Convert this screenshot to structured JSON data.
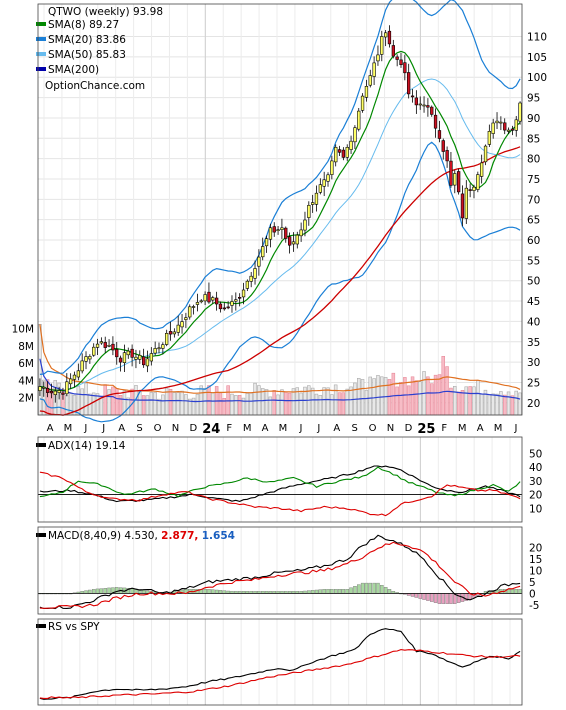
{
  "chart_data": [
    {
      "type": "candlestick",
      "ticker": "QTWO",
      "period": "(weekly)",
      "last": "93.98",
      "legend": [
        {
          "label": "SMA(8)",
          "value": "89.27",
          "color": "#008800"
        },
        {
          "label": "SMA(20)",
          "value": "83.86",
          "color": "#1a7fd6"
        },
        {
          "label": "SMA(50)",
          "value": "85.83",
          "color": "#66bbee"
        },
        {
          "label": "SMA(200)",
          "value": "",
          "color": "#0000aa"
        }
      ],
      "watermark": "OptionChance.com",
      "ylim": [
        17,
        118
      ],
      "yticks": [
        20,
        25,
        30,
        35,
        40,
        45,
        50,
        55,
        60,
        65,
        70,
        75,
        80,
        85,
        90,
        95,
        100,
        105,
        110
      ],
      "close_anchors": [
        [
          0,
          24
        ],
        [
          3,
          23
        ],
        [
          6,
          23
        ],
        [
          9,
          27
        ],
        [
          12,
          31
        ],
        [
          15,
          35
        ],
        [
          18,
          34
        ],
        [
          21,
          31
        ],
        [
          24,
          32
        ],
        [
          27,
          30
        ],
        [
          30,
          33
        ],
        [
          33,
          36
        ],
        [
          36,
          39
        ],
        [
          39,
          43
        ],
        [
          42,
          46
        ],
        [
          45,
          45
        ],
        [
          48,
          43
        ],
        [
          51,
          45
        ],
        [
          54,
          50
        ],
        [
          57,
          56
        ],
        [
          60,
          62
        ],
        [
          63,
          63
        ],
        [
          65,
          58
        ],
        [
          68,
          63
        ],
        [
          70,
          68
        ],
        [
          72,
          72
        ],
        [
          75,
          75
        ],
        [
          77,
          82
        ],
        [
          79,
          80
        ],
        [
          82,
          88
        ],
        [
          84,
          96
        ],
        [
          86,
          100
        ],
        [
          88,
          106
        ],
        [
          90,
          112
        ],
        [
          92,
          105
        ],
        [
          94,
          104
        ],
        [
          96,
          96
        ],
        [
          98,
          93
        ],
        [
          100,
          94
        ],
        [
          102,
          90
        ],
        [
          104,
          86
        ],
        [
          106,
          79
        ],
        [
          107,
          73
        ],
        [
          108,
          76
        ],
        [
          110,
          66
        ],
        [
          111,
          72
        ],
        [
          113,
          74
        ],
        [
          115,
          80
        ],
        [
          117,
          86
        ],
        [
          119,
          90
        ],
        [
          121,
          88
        ],
        [
          123,
          87
        ],
        [
          125,
          94
        ]
      ],
      "volume": {
        "ylim": [
          0,
          11000000
        ],
        "yticks": [
          "2M",
          "4M",
          "6M",
          "8M",
          "10M"
        ],
        "ytick_values": [
          2000000,
          4000000,
          6000000,
          8000000,
          10000000
        ],
        "avg_color": "#e07020"
      },
      "x_axis": {
        "labels": [
          "A",
          "M",
          "J",
          "J",
          "A",
          "S",
          "O",
          "N",
          "D",
          "24",
          "F",
          "M",
          "A",
          "M",
          "J",
          "J",
          "A",
          "S",
          "O",
          "N",
          "D",
          "25",
          "F",
          "M",
          "A",
          "M",
          "J"
        ],
        "bold_labels": [
          "24",
          "25"
        ]
      }
    },
    {
      "type": "line",
      "title": "ADX(14)",
      "value": "19.14",
      "ylim": [
        0,
        62
      ],
      "yticks": [
        10,
        20,
        30,
        40,
        50
      ],
      "series": [
        {
          "key": "adx",
          "color": "#000000",
          "anchors": [
            [
              0,
              22
            ],
            [
              8,
              23
            ],
            [
              14,
              20
            ],
            [
              20,
              15
            ],
            [
              28,
              16
            ],
            [
              34,
              18
            ],
            [
              40,
              20
            ],
            [
              46,
              17
            ],
            [
              52,
              15
            ],
            [
              58,
              20
            ],
            [
              64,
              25
            ],
            [
              70,
              29
            ],
            [
              76,
              32
            ],
            [
              82,
              36
            ],
            [
              86,
              40
            ],
            [
              90,
              41
            ],
            [
              94,
              38
            ],
            [
              98,
              32
            ],
            [
              102,
              26
            ],
            [
              106,
              23
            ],
            [
              110,
              22
            ],
            [
              116,
              26
            ],
            [
              120,
              23
            ],
            [
              125,
              19
            ]
          ]
        },
        {
          "key": "di_plus",
          "color": "#008800",
          "anchors": [
            [
              0,
              18
            ],
            [
              6,
              22
            ],
            [
              10,
              30
            ],
            [
              16,
              27
            ],
            [
              22,
              20
            ],
            [
              30,
              24
            ],
            [
              36,
              19
            ],
            [
              42,
              25
            ],
            [
              48,
              28
            ],
            [
              54,
              32
            ],
            [
              60,
              29
            ],
            [
              66,
              32
            ],
            [
              72,
              26
            ],
            [
              78,
              30
            ],
            [
              84,
              33
            ],
            [
              88,
              40
            ],
            [
              92,
              35
            ],
            [
              96,
              29
            ],
            [
              100,
              25
            ],
            [
              104,
              21
            ],
            [
              108,
              19
            ],
            [
              114,
              24
            ],
            [
              118,
              27
            ],
            [
              122,
              22
            ],
            [
              125,
              29
            ]
          ]
        },
        {
          "key": "di_minus",
          "color": "#dd0000",
          "anchors": [
            [
              0,
              36
            ],
            [
              6,
              32
            ],
            [
              12,
              22
            ],
            [
              18,
              17
            ],
            [
              26,
              16
            ],
            [
              32,
              20
            ],
            [
              38,
              22
            ],
            [
              44,
              17
            ],
            [
              50,
              14
            ],
            [
              56,
              11
            ],
            [
              62,
              10
            ],
            [
              68,
              8
            ],
            [
              74,
              11
            ],
            [
              80,
              10
            ],
            [
              86,
              6
            ],
            [
              90,
              5
            ],
            [
              94,
              13
            ],
            [
              98,
              16
            ],
            [
              102,
              19
            ],
            [
              106,
              27
            ],
            [
              110,
              25
            ],
            [
              114,
              23
            ],
            [
              118,
              23
            ],
            [
              122,
              20
            ],
            [
              125,
              17
            ]
          ]
        }
      ]
    },
    {
      "type": "line",
      "title": "MACD(8,40,9)",
      "value": "4.530,",
      "signal": "2.877,",
      "histogram": "1.654",
      "ylim": [
        -9,
        29
      ],
      "yticks": [
        -5,
        0,
        5,
        10,
        15,
        20
      ],
      "series": [
        {
          "key": "macd",
          "color": "#000000",
          "anchors": [
            [
              0,
              -6
            ],
            [
              8,
              -6
            ],
            [
              14,
              -3
            ],
            [
              20,
              1
            ],
            [
              26,
              2
            ],
            [
              32,
              0
            ],
            [
              38,
              2
            ],
            [
              44,
              5
            ],
            [
              50,
              6
            ],
            [
              56,
              7
            ],
            [
              62,
              9
            ],
            [
              68,
              10
            ],
            [
              74,
              12
            ],
            [
              80,
              15
            ],
            [
              84,
              21
            ],
            [
              88,
              25
            ],
            [
              92,
              23
            ],
            [
              96,
              20
            ],
            [
              100,
              15
            ],
            [
              104,
              7
            ],
            [
              108,
              0
            ],
            [
              112,
              -3
            ],
            [
              116,
              0
            ],
            [
              120,
              3
            ],
            [
              125,
              5
            ]
          ]
        },
        {
          "key": "signal",
          "color": "#dd0000",
          "anchors": [
            [
              0,
              -6
            ],
            [
              8,
              -6
            ],
            [
              14,
              -5
            ],
            [
              20,
              -2
            ],
            [
              26,
              0
            ],
            [
              32,
              0
            ],
            [
              38,
              0
            ],
            [
              44,
              3
            ],
            [
              50,
              5
            ],
            [
              56,
              6
            ],
            [
              62,
              8
            ],
            [
              68,
              9
            ],
            [
              74,
              10
            ],
            [
              80,
              13
            ],
            [
              84,
              16
            ],
            [
              88,
              20
            ],
            [
              92,
              22
            ],
            [
              96,
              21
            ],
            [
              100,
              18
            ],
            [
              104,
              12
            ],
            [
              108,
              5
            ],
            [
              112,
              0
            ],
            [
              116,
              -1
            ],
            [
              120,
              1
            ],
            [
              125,
              3
            ]
          ]
        }
      ]
    },
    {
      "type": "line",
      "title": "RS vs SPY",
      "series": [
        {
          "key": "rs",
          "color": "#000000",
          "anchors": [
            [
              0,
              5
            ],
            [
              8,
              6
            ],
            [
              14,
              11
            ],
            [
              20,
              13
            ],
            [
              26,
              12
            ],
            [
              32,
              13
            ],
            [
              38,
              15
            ],
            [
              44,
              19
            ],
            [
              50,
              22
            ],
            [
              56,
              26
            ],
            [
              62,
              30
            ],
            [
              66,
              28
            ],
            [
              70,
              34
            ],
            [
              76,
              40
            ],
            [
              82,
              45
            ],
            [
              86,
              58
            ],
            [
              90,
              62
            ],
            [
              94,
              60
            ],
            [
              98,
              44
            ],
            [
              102,
              42
            ],
            [
              106,
              36
            ],
            [
              110,
              31
            ],
            [
              114,
              36
            ],
            [
              118,
              40
            ],
            [
              122,
              38
            ],
            [
              125,
              43
            ]
          ]
        },
        {
          "key": "rs_ma",
          "color": "#dd0000",
          "anchors": [
            [
              0,
              6
            ],
            [
              10,
              6
            ],
            [
              20,
              8
            ],
            [
              30,
              9
            ],
            [
              40,
              11
            ],
            [
              50,
              16
            ],
            [
              60,
              23
            ],
            [
              70,
              28
            ],
            [
              80,
              33
            ],
            [
              88,
              40
            ],
            [
              94,
              45
            ],
            [
              100,
              44
            ],
            [
              106,
              42
            ],
            [
              112,
              40
            ],
            [
              118,
              39
            ],
            [
              125,
              40
            ]
          ]
        }
      ]
    }
  ]
}
